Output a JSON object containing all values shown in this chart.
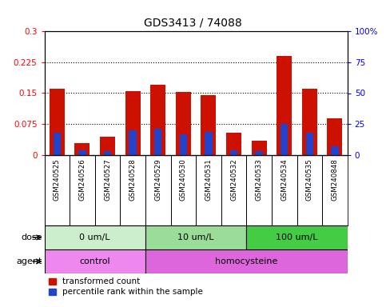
{
  "title": "GDS3413 / 74088",
  "samples": [
    "GSM240525",
    "GSM240526",
    "GSM240527",
    "GSM240528",
    "GSM240529",
    "GSM240530",
    "GSM240531",
    "GSM240532",
    "GSM240533",
    "GSM240534",
    "GSM240535",
    "GSM240848"
  ],
  "transformed_count": [
    0.16,
    0.03,
    0.045,
    0.155,
    0.17,
    0.152,
    0.146,
    0.055,
    0.035,
    0.24,
    0.16,
    0.09
  ],
  "percentile_rank_pct": [
    18,
    4,
    3,
    20,
    21,
    17,
    19,
    4,
    3,
    25,
    18,
    7
  ],
  "red_color": "#CC1100",
  "blue_color": "#2244CC",
  "left_ylim": [
    0,
    0.3
  ],
  "right_ylim": [
    0,
    100
  ],
  "left_yticks": [
    0,
    0.075,
    0.15,
    0.225,
    0.3
  ],
  "left_yticklabels": [
    "0",
    "0.075",
    "0.15",
    "0.225",
    "0.3"
  ],
  "right_yticks": [
    0,
    25,
    50,
    75,
    100
  ],
  "right_yticklabels": [
    "0",
    "25",
    "50",
    "75",
    "100%"
  ],
  "hline_values": [
    0.075,
    0.15,
    0.225
  ],
  "dose_groups": [
    {
      "label": "0 um/L",
      "start": 0,
      "end": 4,
      "color": "#CCEECC"
    },
    {
      "label": "10 um/L",
      "start": 4,
      "end": 8,
      "color": "#99DD99"
    },
    {
      "label": "100 um/L",
      "start": 8,
      "end": 12,
      "color": "#44CC44"
    }
  ],
  "agent_groups": [
    {
      "label": "control",
      "start": 0,
      "end": 4,
      "color": "#EE88EE"
    },
    {
      "label": "homocysteine",
      "start": 4,
      "end": 12,
      "color": "#DD66DD"
    }
  ],
  "bar_width": 0.6,
  "blue_bar_width": 0.3,
  "background_color": "#FFFFFF",
  "plot_bg": "#FFFFFF",
  "title_fontsize": 10,
  "sample_bg": "#CCCCCC"
}
